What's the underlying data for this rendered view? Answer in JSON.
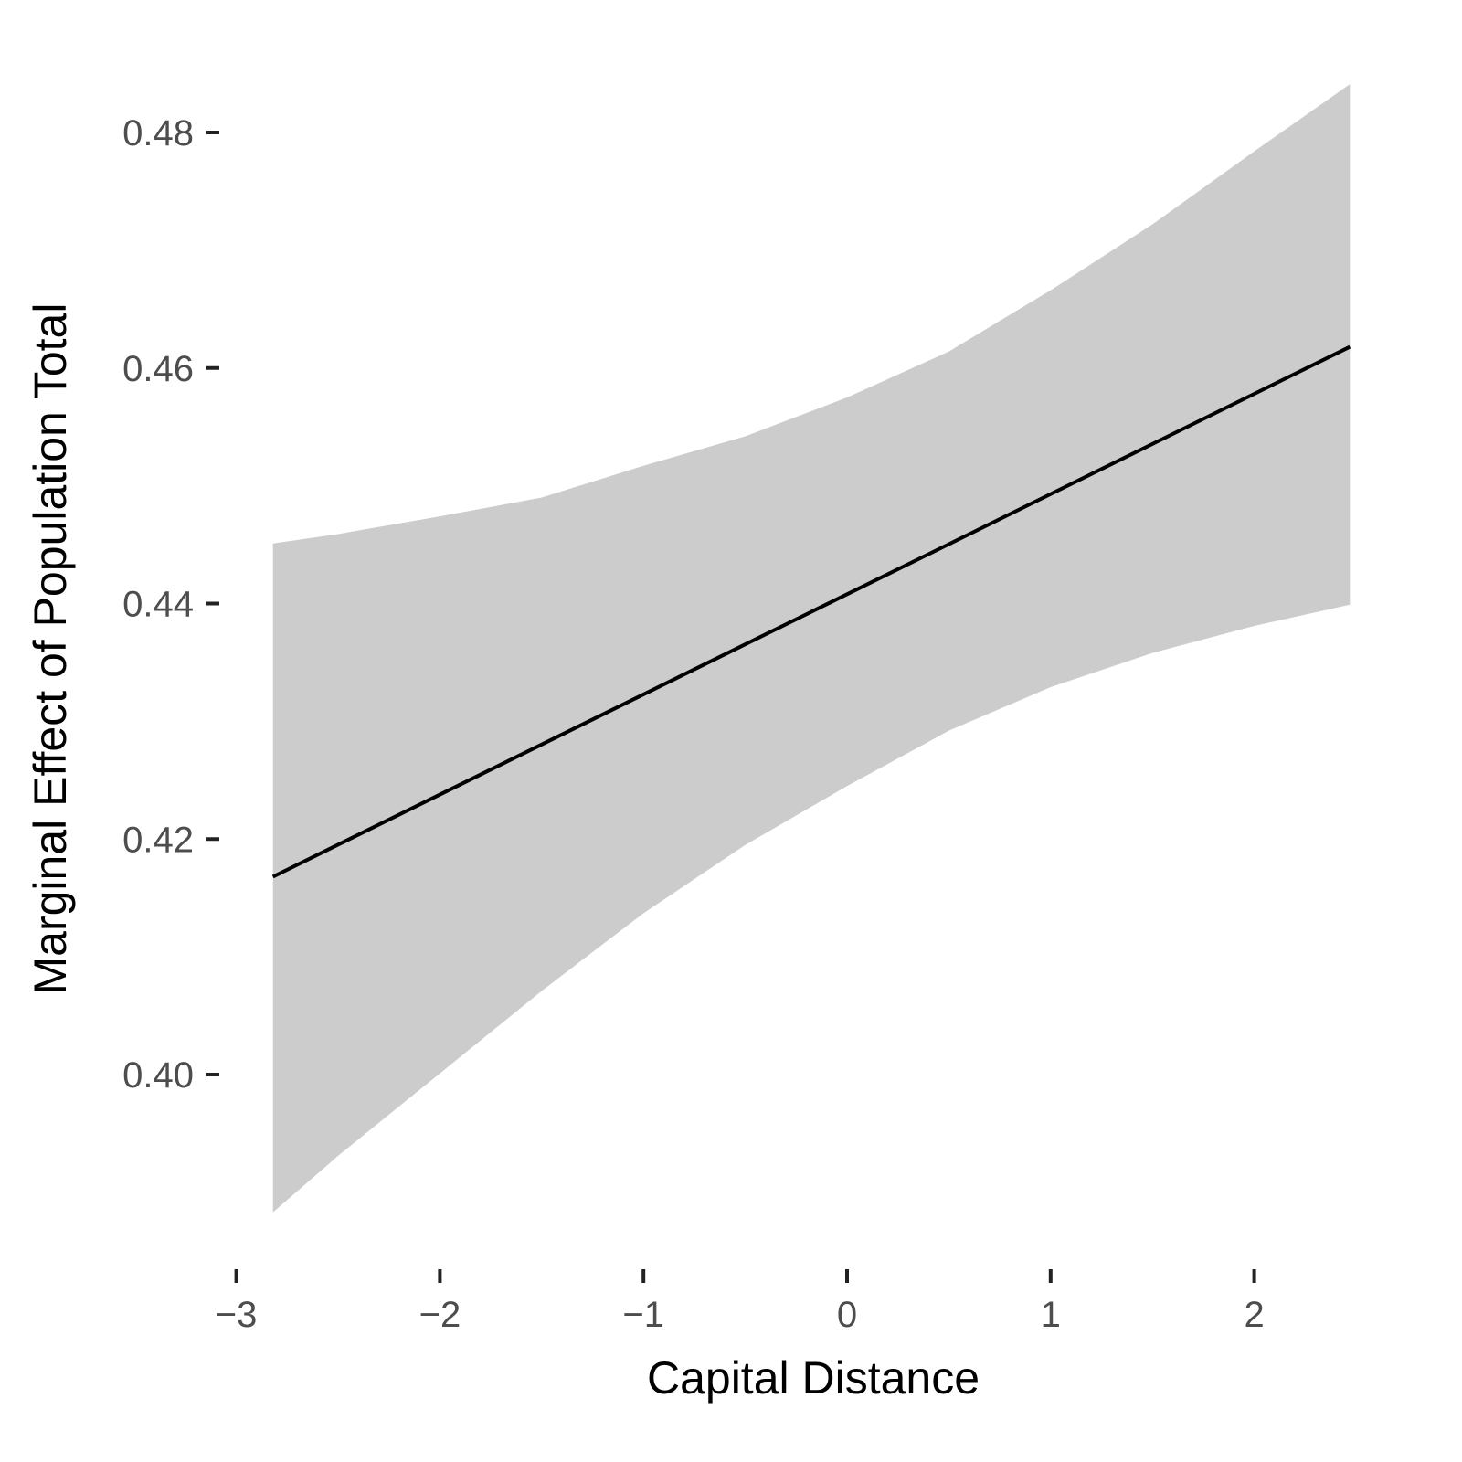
{
  "chart_data": {
    "type": "line",
    "title": "",
    "xlabel": "Capital Distance",
    "ylabel": "Marginal Effect of Population Total",
    "xlim": [
      -3.2,
      2.6
    ],
    "ylim": [
      0.386,
      0.486
    ],
    "x_ticks": [
      -3,
      -2,
      -1,
      0,
      1,
      2
    ],
    "x_tick_labels": [
      "−3",
      "−2",
      "−1",
      "0",
      "1",
      "2"
    ],
    "y_ticks": [
      0.4,
      0.42,
      0.44,
      0.46,
      0.48
    ],
    "y_tick_labels": [
      "0.40",
      "0.42",
      "0.44",
      "0.46",
      "0.48"
    ],
    "grid": false,
    "colors": {
      "line": "#000000",
      "ribbon": "#cccccc",
      "tick_label": "#4d4d4d"
    },
    "line": {
      "x": [
        -2.82,
        2.47
      ],
      "y": [
        0.4168,
        0.4618
      ]
    },
    "ribbon": {
      "x": [
        -2.82,
        -2.5,
        -2.0,
        -1.5,
        -1.0,
        -0.5,
        0.0,
        0.5,
        1.0,
        1.5,
        2.0,
        2.47
      ],
      "upper": [
        0.4451,
        0.4459,
        0.4474,
        0.449,
        0.4517,
        0.4542,
        0.4575,
        0.4614,
        0.4666,
        0.4722,
        0.4784,
        0.4841
      ],
      "lower": [
        0.3883,
        0.3931,
        0.4001,
        0.4071,
        0.4137,
        0.4195,
        0.4245,
        0.4292,
        0.4329,
        0.4358,
        0.4381,
        0.4399
      ]
    }
  }
}
